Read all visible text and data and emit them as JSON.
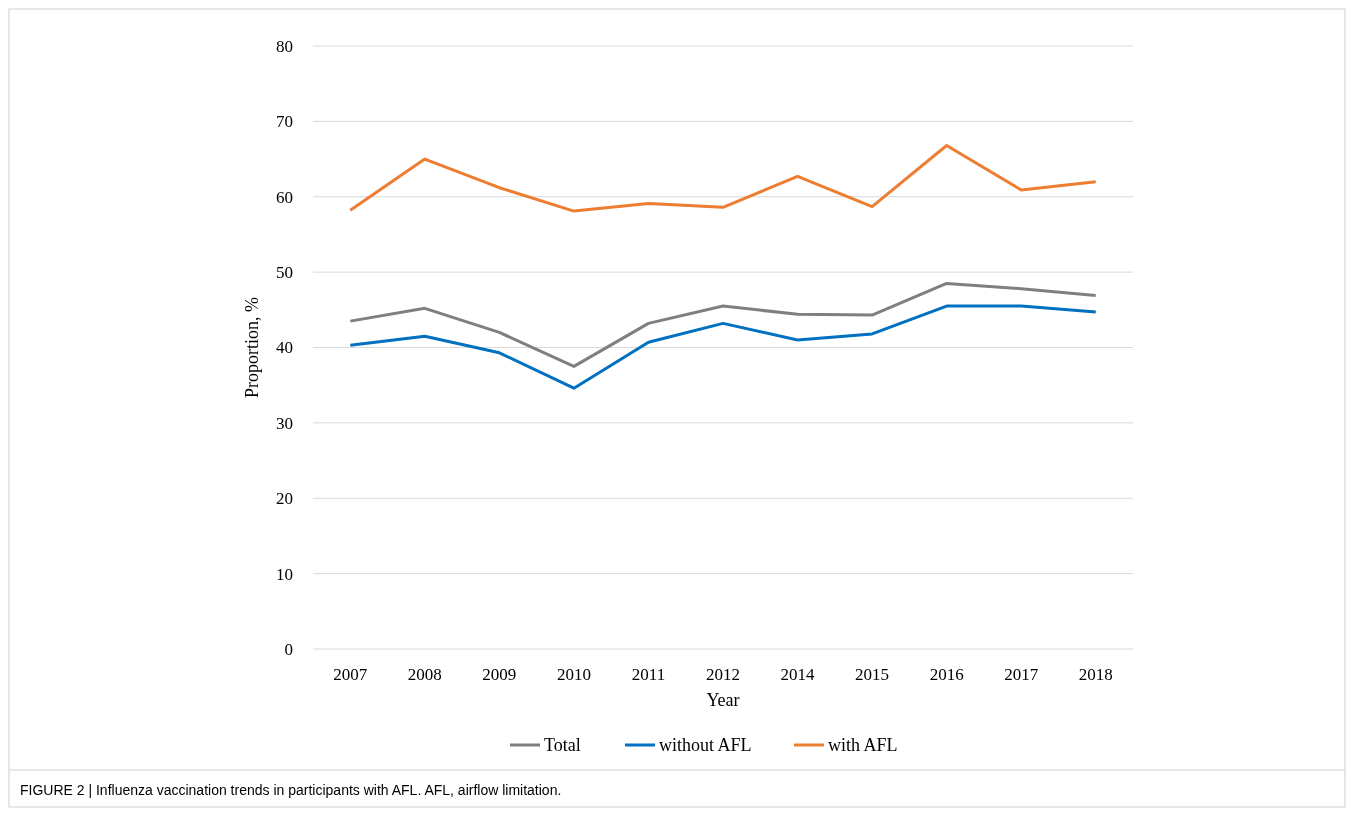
{
  "chart_data": {
    "type": "line",
    "xlabel": "Year",
    "ylabel": "Proportion, %",
    "categories": [
      "2007",
      "2008",
      "2009",
      "2010",
      "2011",
      "2012",
      "2014",
      "2015",
      "2016",
      "2017",
      "2018"
    ],
    "series": [
      {
        "name": "Total",
        "color": "#7f7f7f",
        "values": [
          43.5,
          45.2,
          42,
          37.5,
          43.2,
          45.5,
          44.4,
          44.3,
          48.5,
          47.8,
          46.9
        ]
      },
      {
        "name": "without AFL",
        "color": "#0070c0",
        "values": [
          40.3,
          41.5,
          39.3,
          34.6,
          40.7,
          43.2,
          41,
          41.8,
          45.5,
          45.5,
          44.7
        ]
      },
      {
        "name": "with AFL",
        "color": "#ed7d31",
        "values": [
          58.2,
          65,
          61.2,
          58.1,
          59.1,
          58.6,
          62.7,
          58.7,
          66.8,
          60.9,
          62
        ]
      }
    ],
    "ylim": [
      0,
      80
    ],
    "yticks": [
      0,
      10,
      20,
      30,
      40,
      50,
      60,
      70,
      80
    ],
    "grid": "y",
    "legend": "bottom",
    "annotations": [
      "FIGURE 2 | Influenza vaccination trends in participants with AFL. AFL, airflow limitation."
    ]
  }
}
